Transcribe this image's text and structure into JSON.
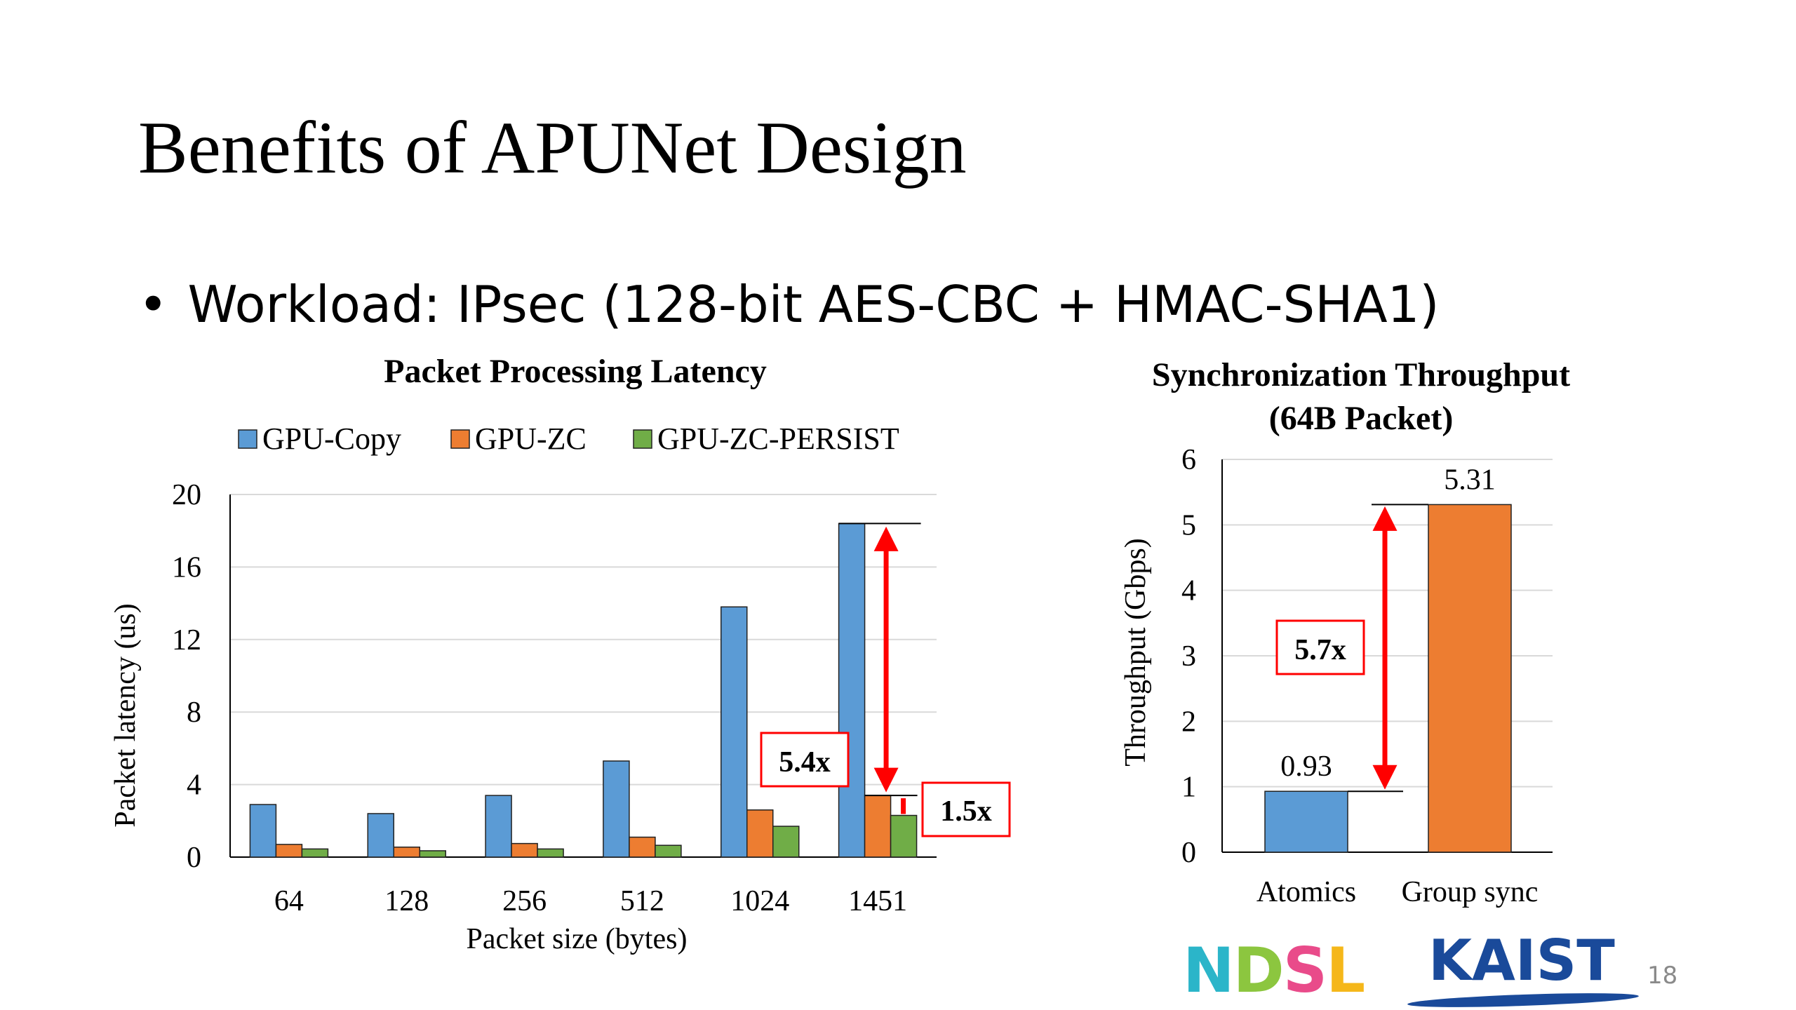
{
  "slide": {
    "title": "Benefits of APUNet Design",
    "bullet": "Workload: IPsec (128-bit AES-CBC + HMAC-SHA1)",
    "page_number": "18",
    "logos": {
      "ndsl": "NDSL",
      "kaist": "KAIST"
    }
  },
  "colors": {
    "gpu_copy": "#5b9bd5",
    "gpu_zc": "#ed7d31",
    "gpu_zc_persist": "#70ad47",
    "annotation": "#ff0000",
    "kaist_blue": "#1a4a9a"
  },
  "chart_data": [
    {
      "type": "bar",
      "title": "Packet Processing Latency",
      "xlabel": "Packet size (bytes)",
      "ylabel": "Packet latency (us)",
      "categories": [
        "64",
        "128",
        "256",
        "512",
        "1024",
        "1451"
      ],
      "series": [
        {
          "name": "GPU-Copy",
          "color": "#5b9bd5",
          "values": [
            2.9,
            2.4,
            3.4,
            5.3,
            13.8,
            18.4
          ]
        },
        {
          "name": "GPU-ZC",
          "color": "#ed7d31",
          "values": [
            0.7,
            0.55,
            0.75,
            1.1,
            2.6,
            3.4
          ]
        },
        {
          "name": "GPU-ZC-PERSIST",
          "color": "#70ad47",
          "values": [
            0.45,
            0.35,
            0.45,
            0.65,
            1.7,
            2.3
          ]
        }
      ],
      "ylim": [
        0,
        20
      ],
      "yticks": [
        "0",
        "4",
        "8",
        "12",
        "16",
        "20"
      ],
      "grid": true,
      "legend": "top",
      "annotations": [
        {
          "label": "5.4x",
          "from_series": "GPU-Copy",
          "to_series": "GPU-ZC",
          "category": "1451"
        },
        {
          "label": "1.5x",
          "from_series": "GPU-ZC",
          "to_series": "GPU-ZC-PERSIST",
          "category": "1451"
        }
      ]
    },
    {
      "type": "bar",
      "title": "Synchronization Throughput",
      "subtitle": "(64B Packet)",
      "xlabel": "",
      "ylabel": "Throughput (Gbps)",
      "categories": [
        "Atomics",
        "Group sync"
      ],
      "values": [
        0.93,
        5.31
      ],
      "data_labels": [
        "0.93",
        "5.31"
      ],
      "colors": [
        "#5b9bd5",
        "#ed7d31"
      ],
      "ylim": [
        0,
        6
      ],
      "yticks": [
        "0",
        "1",
        "2",
        "3",
        "4",
        "5",
        "6"
      ],
      "grid": true,
      "annotations": [
        {
          "label": "5.7x",
          "from_category": "Atomics",
          "to_category": "Group sync"
        }
      ]
    }
  ]
}
